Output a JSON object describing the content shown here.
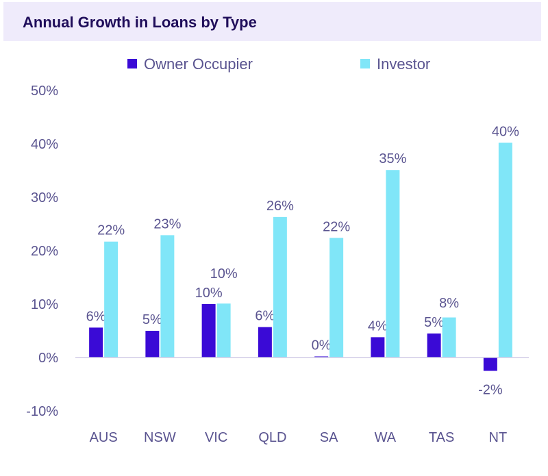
{
  "chart_data": {
    "type": "bar",
    "title": "Annual Growth in Loans by Type",
    "categories": [
      "AUS",
      "NSW",
      "VIC",
      "QLD",
      "SA",
      "WA",
      "TAS",
      "NT"
    ],
    "series": [
      {
        "name": "Owner Occupier",
        "color": "#3a0ad6",
        "values": [
          5.6,
          5.0,
          10.0,
          5.7,
          0.2,
          3.8,
          4.5,
          -2.5
        ],
        "labels": [
          "6%",
          "5%",
          "10%",
          "6%",
          "0%",
          "4%",
          "5%",
          "-2%"
        ]
      },
      {
        "name": "Investor",
        "color": "#80e6f8",
        "values": [
          21.7,
          22.9,
          10.1,
          26.3,
          22.4,
          35.1,
          7.5,
          40.2
        ],
        "labels": [
          "22%",
          "23%",
          "10%",
          "26%",
          "22%",
          "35%",
          "8%",
          "40%"
        ]
      }
    ],
    "ylim": [
      -10,
      50
    ],
    "yticks": [
      -10,
      0,
      10,
      20,
      30,
      40,
      50
    ],
    "ytick_labels": [
      "-10%",
      "0%",
      "10%",
      "20%",
      "30%",
      "40%",
      "50%"
    ],
    "grid": false,
    "legend": "top"
  }
}
